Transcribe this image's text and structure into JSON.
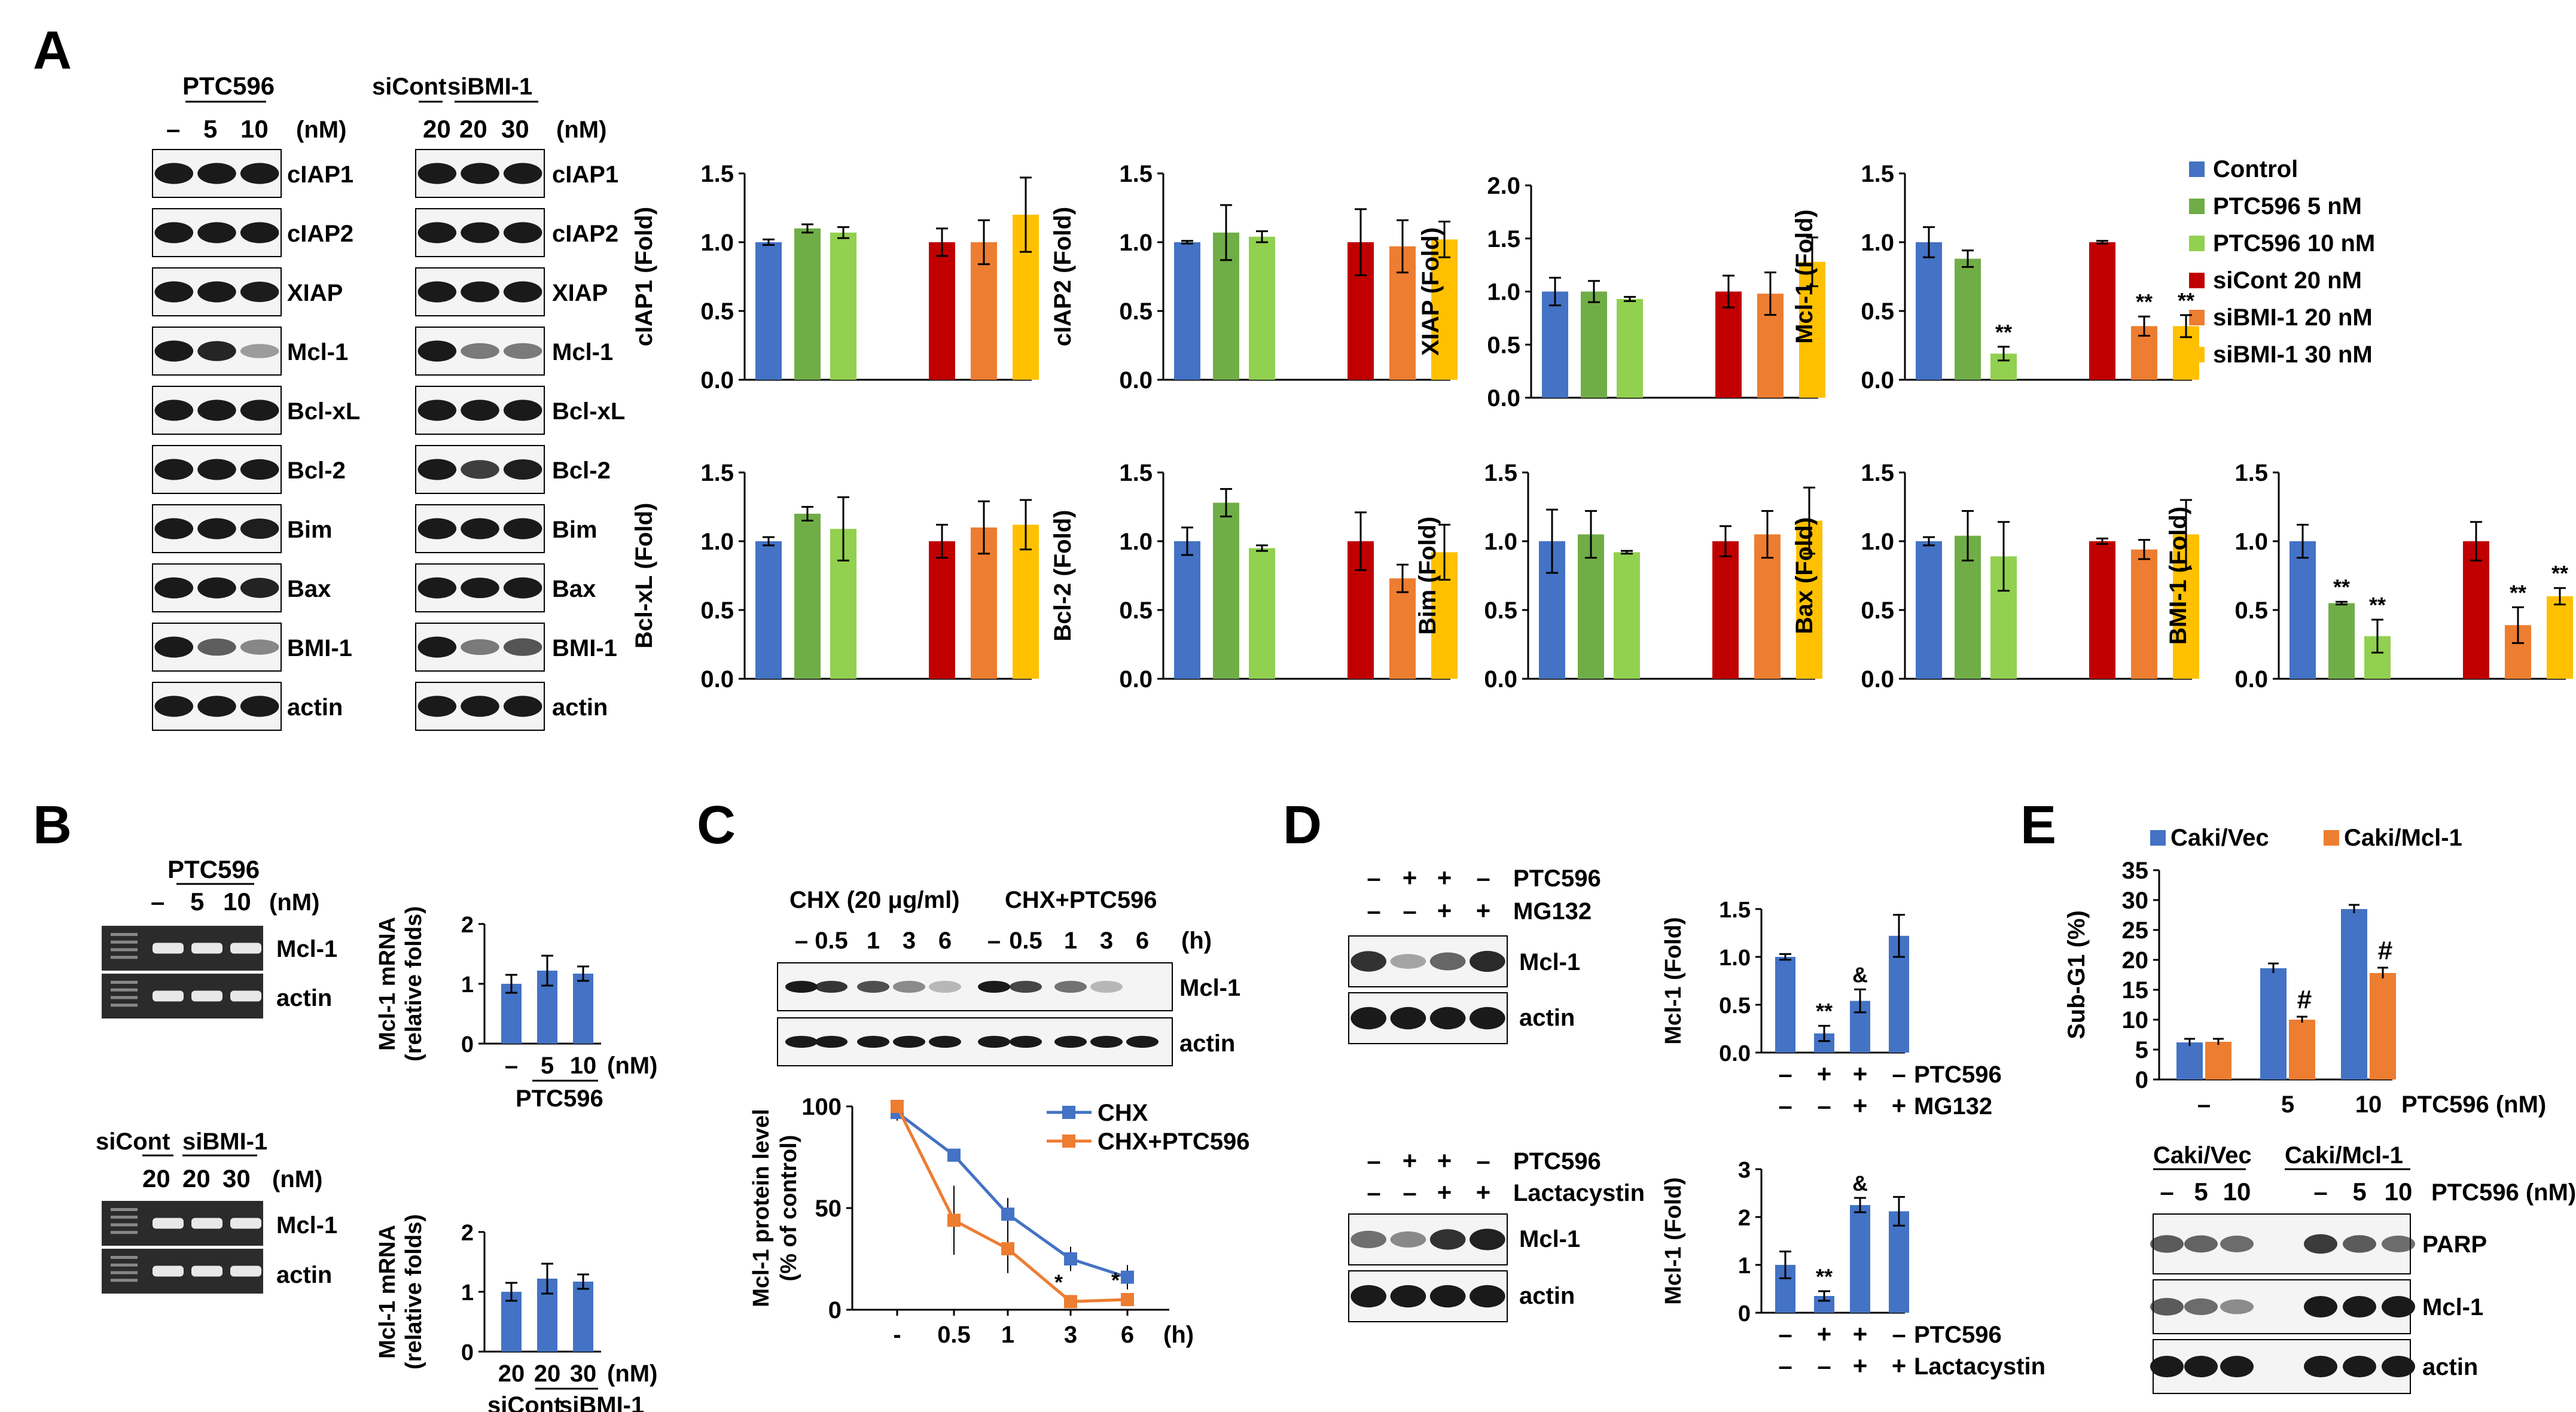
{
  "colors": {
    "control": "#4472C4",
    "ptc5": "#70AD47",
    "ptc10": "#92D050",
    "sicont": "#C00000",
    "sibmi20": "#ED7D31",
    "sibmi30": "#FFC000",
    "vec": "#4472C4",
    "mcl": "#ED7D31",
    "blot_band": "#1a1a1a"
  },
  "panels": {
    "A": {
      "letter": "A",
      "ptc_header": "PTC596",
      "ptc_lanes": [
        "–",
        "5",
        "10"
      ],
      "nm": "(nM)",
      "si_header_cont": "siCont",
      "si_header_bmi": "siBMI-1",
      "si_lanes": [
        "20",
        "20",
        "30"
      ],
      "blot_rows": [
        "cIAP1",
        "cIAP2",
        "XIAP",
        "Mcl-1",
        "Bcl-xL",
        "Bcl-2",
        "Bim",
        "Bax",
        "BMI-1",
        "actin"
      ],
      "legend": [
        "Control",
        "PTC596 5 nM",
        "PTC596 10 nM",
        "siCont 20 nM",
        "siBMI-1 20 nM",
        "siBMI-1 30 nM"
      ]
    },
    "B": {
      "letter": "B",
      "top_header": "PTC596",
      "top_lanes": [
        "–",
        "5",
        "10"
      ],
      "nm": "(nM)",
      "gel_rows": [
        "Mcl-1",
        "actin"
      ],
      "bottom_header_cont": "siCont",
      "bottom_header_bmi": "siBMI-1",
      "bottom_lanes": [
        "20",
        "20",
        "30"
      ]
    },
    "C": {
      "letter": "C",
      "hdr_chx": "CHX (20 μg/ml)",
      "hdr_chxptc": "CHX+PTC596",
      "lanes": [
        "–",
        "0.5",
        "1",
        "3",
        "6",
        "–",
        "0.5",
        "1",
        "3",
        "6"
      ],
      "h": "(h)",
      "rows": [
        "Mcl-1",
        "actin"
      ]
    },
    "D": {
      "letter": "D",
      "top_row1_label": "PTC596",
      "top_row1_signs": [
        "–",
        "+",
        "+",
        "–"
      ],
      "top_row2_label": "MG132",
      "top_row2_signs": [
        "–",
        "–",
        "+",
        "+"
      ],
      "bottom_row1_label": "PTC596",
      "bottom_row1_signs": [
        "–",
        "+",
        "+",
        "–"
      ],
      "bottom_row2_label": "Lactacystin",
      "bottom_row2_signs": [
        "–",
        "–",
        "+",
        "+"
      ],
      "blot_rows": [
        "Mcl-1",
        "actin"
      ]
    },
    "E": {
      "letter": "E",
      "blot_hdr_vec": "Caki/Vec",
      "blot_hdr_mcl": "Caki/Mcl-1",
      "blot_lanes": [
        "–",
        "5",
        "10",
        "–",
        "5",
        "10"
      ],
      "blot_unit": "PTC596 (nM)",
      "blot_rows": [
        "PARP",
        "Mcl-1",
        "actin"
      ]
    }
  },
  "chart_data": [
    {
      "type": "bar",
      "id": "A-cIAP1",
      "ylabel": "cIAP1 (Fold)",
      "ylim": [
        0,
        1.5
      ],
      "yticks": [
        "0.0",
        "0.5",
        "1.0",
        "1.5"
      ],
      "values": [
        1.0,
        1.1,
        1.07,
        1.0,
        1.0,
        1.2
      ],
      "errors": [
        0.02,
        0.03,
        0.04,
        0.1,
        0.16,
        0.27
      ],
      "sig": [
        "",
        "",
        "",
        "",
        "",
        ""
      ]
    },
    {
      "type": "bar",
      "id": "A-cIAP2",
      "ylabel": "cIAP2 (Fold)",
      "ylim": [
        0,
        1.5
      ],
      "yticks": [
        "0.0",
        "0.5",
        "1.0",
        "1.5"
      ],
      "values": [
        1.0,
        1.07,
        1.04,
        1.0,
        0.97,
        1.02
      ],
      "errors": [
        0.01,
        0.2,
        0.04,
        0.24,
        0.19,
        0.13
      ],
      "sig": [
        "",
        "",
        "",
        "",
        "",
        ""
      ]
    },
    {
      "type": "bar",
      "id": "A-XIAP",
      "ylabel": "XIAP (Fold)",
      "ylim": [
        0,
        2.0
      ],
      "yticks": [
        "0.0",
        "0.5",
        "1.0",
        "1.5",
        "2.0"
      ],
      "values": [
        1.0,
        1.0,
        0.93,
        1.0,
        0.98,
        1.28
      ],
      "errors": [
        0.13,
        0.1,
        0.02,
        0.15,
        0.2,
        0.23
      ],
      "sig": [
        "",
        "",
        "",
        "",
        "",
        ""
      ]
    },
    {
      "type": "bar",
      "id": "A-Mcl-1",
      "ylabel": "Mcl-1 (Fold)",
      "ylim": [
        0,
        1.5
      ],
      "yticks": [
        "0.0",
        "0.5",
        "1.0",
        "1.5"
      ],
      "values": [
        1.0,
        0.88,
        0.19,
        1.0,
        0.39,
        0.39
      ],
      "errors": [
        0.11,
        0.06,
        0.05,
        0.01,
        0.07,
        0.08
      ],
      "sig": [
        "",
        "",
        "**",
        "",
        "**",
        "**"
      ]
    },
    {
      "type": "bar",
      "id": "A-Bcl-xL",
      "ylabel": "Bcl-xL (Fold)",
      "ylim": [
        0,
        1.5
      ],
      "yticks": [
        "0.0",
        "0.5",
        "1.0",
        "1.5"
      ],
      "values": [
        1.0,
        1.2,
        1.09,
        1.0,
        1.1,
        1.12
      ],
      "errors": [
        0.03,
        0.05,
        0.23,
        0.12,
        0.19,
        0.18
      ],
      "sig": [
        "",
        "",
        "",
        "",
        "",
        ""
      ]
    },
    {
      "type": "bar",
      "id": "A-Bcl-2",
      "ylabel": "Bcl-2 (Fold)",
      "ylim": [
        0,
        1.5
      ],
      "yticks": [
        "0.0",
        "0.5",
        "1.0",
        "1.5"
      ],
      "values": [
        1.0,
        1.28,
        0.95,
        1.0,
        0.73,
        0.92
      ],
      "errors": [
        0.1,
        0.1,
        0.02,
        0.21,
        0.1,
        0.2
      ],
      "sig": [
        "",
        "",
        "",
        "",
        "",
        ""
      ]
    },
    {
      "type": "bar",
      "id": "A-Bim",
      "ylabel": "Bim (Fold)",
      "ylim": [
        0,
        1.5
      ],
      "yticks": [
        "0.0",
        "0.5",
        "1.0",
        "1.5"
      ],
      "values": [
        1.0,
        1.05,
        0.92,
        1.0,
        1.05,
        1.15
      ],
      "errors": [
        0.23,
        0.17,
        0.01,
        0.11,
        0.17,
        0.24
      ],
      "sig": [
        "",
        "",
        "",
        "",
        "",
        ""
      ]
    },
    {
      "type": "bar",
      "id": "A-Bax",
      "ylabel": "Bax (Fold)",
      "ylim": [
        0,
        1.5
      ],
      "yticks": [
        "0.0",
        "0.5",
        "1.0",
        "1.5"
      ],
      "values": [
        1.0,
        1.04,
        0.89,
        1.0,
        0.94,
        1.05
      ],
      "errors": [
        0.03,
        0.18,
        0.25,
        0.02,
        0.07,
        0.25
      ],
      "sig": [
        "",
        "",
        "",
        "",
        "",
        ""
      ]
    },
    {
      "type": "bar",
      "id": "A-BMI-1",
      "ylabel": "BMI-1 (Fold)",
      "ylim": [
        0,
        1.5
      ],
      "yticks": [
        "0.0",
        "0.5",
        "1.0",
        "1.5"
      ],
      "values": [
        1.0,
        0.55,
        0.31,
        1.0,
        0.39,
        0.6
      ],
      "errors": [
        0.12,
        0.01,
        0.12,
        0.14,
        0.13,
        0.06
      ],
      "sig": [
        "",
        "**",
        "**",
        "",
        "**",
        "**"
      ]
    },
    {
      "type": "bar",
      "id": "B-top",
      "ylabel": "Mcl-1 mRNA",
      "ylabel2": "(relative folds)",
      "ylim": [
        0,
        2
      ],
      "yticks": [
        "0",
        "1",
        "2"
      ],
      "categories": [
        "–",
        "5",
        "10"
      ],
      "values": [
        1.0,
        1.22,
        1.17
      ],
      "errors": [
        0.15,
        0.25,
        0.12
      ],
      "xgroup": "PTC596",
      "xunit": "(nM)"
    },
    {
      "type": "bar",
      "id": "B-bottom",
      "ylabel": "Mcl-1 mRNA",
      "ylabel2": "(relative folds)",
      "ylim": [
        0,
        2
      ],
      "yticks": [
        "0",
        "1",
        "2"
      ],
      "categories": [
        "20",
        "20",
        "30"
      ],
      "values": [
        1.0,
        1.22,
        1.17
      ],
      "errors": [
        0.15,
        0.25,
        0.12
      ],
      "xgroup_left": "siCont",
      "xgroup_right": "siBMI-1",
      "xunit": "(nM)"
    },
    {
      "type": "line",
      "id": "C-line",
      "ylabel": "Mcl-1 protein level",
      "ylabel2": "(% of control)",
      "xlabel": "(h)",
      "ylim": [
        0,
        100
      ],
      "yticks": [
        "0",
        "50",
        "100"
      ],
      "categories": [
        "-",
        "0.5",
        "1",
        "3",
        "6"
      ],
      "series": [
        {
          "name": "CHX",
          "values": [
            97,
            76,
            47,
            25,
            16
          ],
          "errors": [
            4,
            2,
            8,
            6,
            6
          ]
        },
        {
          "name": "CHX+PTC596",
          "values": [
            100,
            44,
            30,
            4,
            5
          ],
          "errors": [
            2,
            17,
            12,
            1,
            1
          ]
        }
      ],
      "sig": [
        "",
        "",
        "",
        "*",
        "*"
      ]
    },
    {
      "type": "bar",
      "id": "D-top",
      "ylabel": "Mcl-1 (Fold)",
      "ylim": [
        0,
        1.5
      ],
      "yticks": [
        "0.0",
        "0.5",
        "1.0",
        "1.5"
      ],
      "values": [
        1.0,
        0.2,
        0.54,
        1.22
      ],
      "errors": [
        0.03,
        0.08,
        0.12,
        0.22
      ],
      "sig": [
        "",
        "**",
        "&",
        ""
      ],
      "row1_label": "PTC596",
      "row1_signs": [
        "–",
        "+",
        "+",
        "–"
      ],
      "row2_label": "MG132",
      "row2_signs": [
        "–",
        "–",
        "+",
        "+"
      ]
    },
    {
      "type": "bar",
      "id": "D-bottom",
      "ylabel": "Mcl-1 (Fold)",
      "ylim": [
        0,
        3
      ],
      "yticks": [
        "0",
        "1",
        "2",
        "3"
      ],
      "values": [
        1.0,
        0.35,
        2.25,
        2.12
      ],
      "errors": [
        0.28,
        0.1,
        0.15,
        0.3
      ],
      "sig": [
        "",
        "**",
        "&",
        ""
      ],
      "row1_label": "PTC596",
      "row1_signs": [
        "–",
        "+",
        "+",
        "–"
      ],
      "row2_label": "Lactacystin",
      "row2_signs": [
        "–",
        "–",
        "+",
        "+"
      ]
    },
    {
      "type": "bar",
      "id": "E-bar",
      "ylabel": "Sub-G1 (%)",
      "ylim": [
        0,
        35
      ],
      "yticks": [
        "0",
        "5",
        "10",
        "15",
        "20",
        "25",
        "30",
        "35"
      ],
      "categories": [
        "–",
        "5",
        "10"
      ],
      "xunit": "PTC596 (nM)",
      "series": [
        {
          "name": "Caki/Vec",
          "values": [
            6.2,
            18.6,
            28.5
          ],
          "errors": [
            0.6,
            0.8,
            0.7
          ]
        },
        {
          "name": "Caki/Mcl-1",
          "values": [
            6.3,
            10.0,
            17.8
          ],
          "errors": [
            0.5,
            0.5,
            0.9
          ]
        }
      ],
      "sig": [
        "",
        "#",
        "#"
      ]
    }
  ]
}
